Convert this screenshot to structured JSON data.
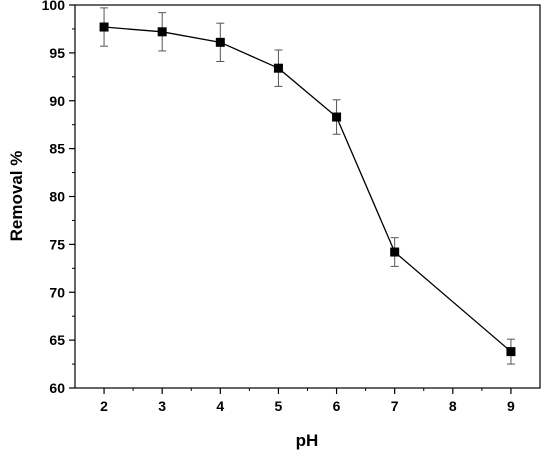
{
  "chart_data": {
    "type": "line",
    "xlabel": "pH",
    "ylabel": "Removal %",
    "xlim": [
      1.5,
      9.5
    ],
    "ylim": [
      60,
      100
    ],
    "x_ticks": [
      2,
      3,
      4,
      5,
      6,
      7,
      8,
      9
    ],
    "y_ticks": [
      60,
      65,
      70,
      75,
      80,
      85,
      90,
      95,
      100
    ],
    "grid": false,
    "series": [
      {
        "marker": "square",
        "color": "#000000",
        "x": [
          2,
          3,
          4,
          5,
          6,
          7,
          9
        ],
        "y": [
          97.7,
          97.2,
          96.1,
          93.4,
          88.3,
          74.2,
          63.8
        ],
        "error": [
          2.0,
          2.0,
          2.0,
          1.9,
          1.8,
          1.5,
          1.3
        ]
      }
    ]
  }
}
